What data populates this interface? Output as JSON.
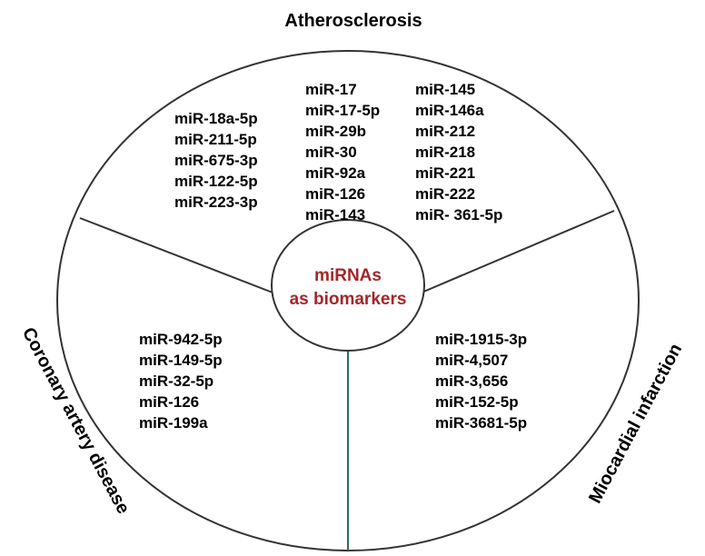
{
  "titles": {
    "top": "Atherosclerosis",
    "left": "Coronary artery disease",
    "right": "Miocardial infarction"
  },
  "center": {
    "line1": "miRNAs",
    "line2": "as biomarkers"
  },
  "colors": {
    "center_text": "#a3262a",
    "bottom_divider": "#2e6b66",
    "outline": "#333333"
  },
  "atherosclerosis": {
    "col1": [
      "miR-18a-5p",
      "miR-211-5p",
      "miR-675-3p",
      "miR-122-5p",
      "miR-223-3p"
    ],
    "col2": [
      "miR-17",
      "miR-17-5p",
      "miR-29b",
      "miR-30",
      "miR-92a",
      "miR-126",
      "miR-143"
    ],
    "col3": [
      "miR-145",
      "miR-146a",
      "miR-212",
      "miR-218",
      "miR-221",
      "miR-222",
      "miR- 361-5p"
    ]
  },
  "coronary_artery_disease": [
    "miR-942-5p",
    "miR-149-5p",
    "miR-32-5p",
    "miR-126",
    "miR-199a"
  ],
  "myocardial_infarction": [
    "miR-1915-3p",
    "miR-4,507",
    "miR-3,656",
    "miR-152-5p",
    "miR-3681-5p"
  ]
}
